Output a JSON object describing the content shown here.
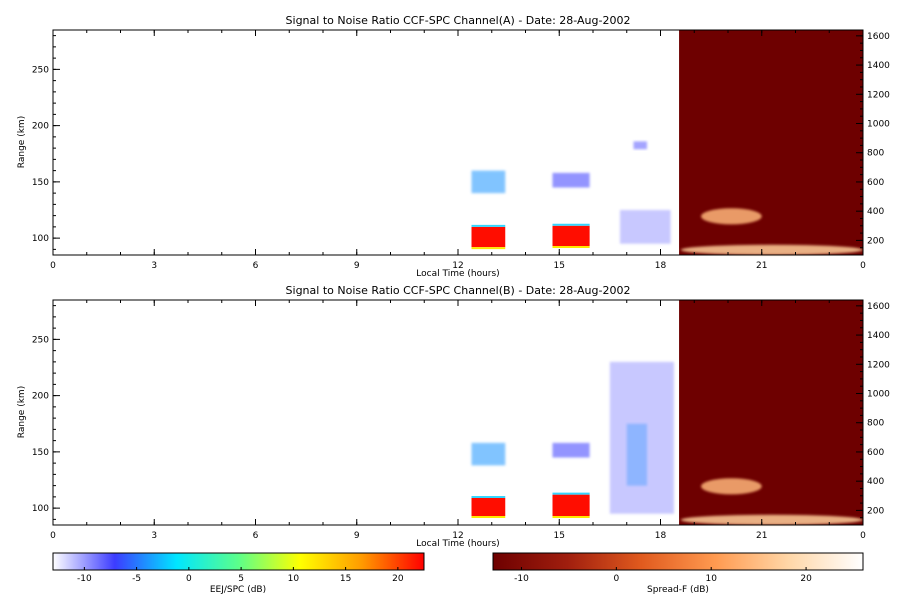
{
  "chart_data": [
    {
      "type": "heatmap",
      "title": "Signal to Noise Ratio CCF-SPC Channel(A) - Date: 28-Aug-2002",
      "xlabel": "Local Time (hours)",
      "ylabel": "Range (km)",
      "x_ticks": [
        "0",
        "3",
        "6",
        "9",
        "12",
        "15",
        "18",
        "21",
        "0"
      ],
      "x_range": [
        0,
        24
      ],
      "y_ticks": [
        100,
        150,
        200,
        250
      ],
      "y_range": [
        85,
        285
      ],
      "y2_ticks": [
        200,
        400,
        600,
        800,
        1000,
        1200,
        1400,
        1600
      ],
      "y2_range": [
        100,
        1640
      ],
      "spread_f_start_hour": 18.55,
      "echoes": [
        {
          "kind": "ejspc",
          "x": [
            12.4,
            13.4
          ],
          "y": [
            92,
            110
          ],
          "snr_db": 22
        },
        {
          "kind": "ejspc",
          "x": [
            14.8,
            15.9
          ],
          "y": [
            93,
            111
          ],
          "snr_db": 22
        },
        {
          "kind": "ejspc",
          "x": [
            12.4,
            13.4
          ],
          "y": [
            140,
            160
          ],
          "snr_db": -4
        },
        {
          "kind": "ejspc",
          "x": [
            14.8,
            15.9
          ],
          "y": [
            145,
            158
          ],
          "snr_db": -7
        },
        {
          "kind": "ejspc",
          "x": [
            17.2,
            17.6
          ],
          "y": [
            179,
            186
          ],
          "snr_db": -8
        },
        {
          "kind": "ejspc",
          "x": [
            16.8,
            18.3
          ],
          "y": [
            95,
            125
          ],
          "snr_db": -10
        },
        {
          "kind": "spreadf",
          "x": [
            19.2,
            21.0
          ],
          "y2": [
            310,
            420
          ],
          "snr_db": 14
        },
        {
          "kind": "spreadf",
          "x": [
            18.6,
            24.0
          ],
          "y2": [
            100,
            170
          ],
          "snr_db": 17
        }
      ]
    },
    {
      "type": "heatmap",
      "title": "Signal to Noise Ratio CCF-SPC Channel(B) - Date: 28-Aug-2002",
      "xlabel": "Local Time (hours)",
      "ylabel": "Range (km)",
      "x_ticks": [
        "0",
        "3",
        "6",
        "9",
        "12",
        "15",
        "18",
        "21",
        "0"
      ],
      "x_range": [
        0,
        24
      ],
      "y_ticks": [
        100,
        150,
        200,
        250
      ],
      "y_range": [
        85,
        285
      ],
      "y2_ticks": [
        200,
        400,
        600,
        800,
        1000,
        1200,
        1400,
        1600
      ],
      "y2_range": [
        100,
        1640
      ],
      "spread_f_start_hour": 18.55,
      "echoes": [
        {
          "kind": "ejspc",
          "x": [
            12.4,
            13.4
          ],
          "y": [
            93,
            109
          ],
          "snr_db": 22
        },
        {
          "kind": "ejspc",
          "x": [
            14.8,
            15.9
          ],
          "y": [
            93,
            112
          ],
          "snr_db": 22
        },
        {
          "kind": "ejspc",
          "x": [
            12.4,
            13.4
          ],
          "y": [
            138,
            158
          ],
          "snr_db": -4
        },
        {
          "kind": "ejspc",
          "x": [
            14.8,
            15.9
          ],
          "y": [
            145,
            158
          ],
          "snr_db": -7
        },
        {
          "kind": "ejspc",
          "x": [
            17.0,
            17.6
          ],
          "y": [
            120,
            175
          ],
          "snr_db": -3
        },
        {
          "kind": "ejspc",
          "x": [
            16.5,
            18.4
          ],
          "y": [
            95,
            230
          ],
          "snr_db": -10
        },
        {
          "kind": "spreadf",
          "x": [
            19.2,
            21.0
          ],
          "y2": [
            310,
            420
          ],
          "snr_db": 14
        },
        {
          "kind": "spreadf",
          "x": [
            18.6,
            24.0
          ],
          "y2": [
            100,
            170
          ],
          "snr_db": 17
        }
      ]
    }
  ],
  "colorbars": [
    {
      "label": "EEJ/SPC (dB)",
      "ticks": [
        -10,
        -5,
        0,
        5,
        10,
        15,
        20
      ],
      "range": [
        -13,
        22.5
      ],
      "palette": [
        "#ffffff",
        "#3c3cff",
        "#00e6ff",
        "#5cff8a",
        "#ffff00",
        "#ff9a00",
        "#ff0000"
      ]
    },
    {
      "label": "Spread-F (dB)",
      "ticks": [
        -10,
        0,
        10,
        20
      ],
      "range": [
        -13,
        26
      ],
      "palette": [
        "#6e0000",
        "#a01e0e",
        "#e05a1e",
        "#ff9a50",
        "#ffd7a8",
        "#ffffff"
      ]
    }
  ]
}
